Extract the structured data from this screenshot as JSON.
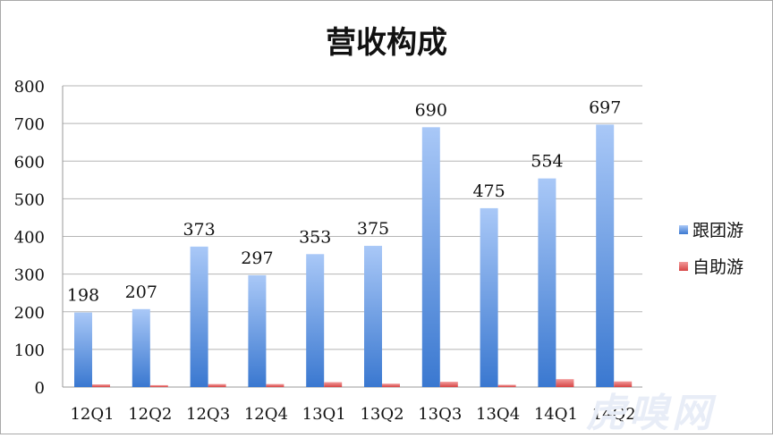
{
  "chart_data": {
    "type": "bar",
    "title": "营收构成",
    "categories": [
      "12Q1",
      "12Q2",
      "12Q3",
      "12Q4",
      "13Q1",
      "13Q2",
      "13Q3",
      "13Q4",
      "14Q1",
      "14Q2"
    ],
    "series": [
      {
        "name": "跟团游",
        "values": [
          198,
          207,
          373,
          297,
          353,
          375,
          690,
          475,
          554,
          697
        ],
        "color": "#4f8bd8",
        "data_labels": true
      },
      {
        "name": "自助游",
        "values": [
          7,
          5,
          8,
          8,
          13,
          9,
          14,
          6,
          21,
          15
        ],
        "color": "#e05c5c",
        "data_labels": false
      }
    ],
    "ylim": [
      0,
      800
    ],
    "yticks": [
      0,
      100,
      200,
      300,
      400,
      500,
      600,
      700,
      800
    ],
    "grid": true,
    "legend": "right"
  },
  "watermark": "虎嗅网"
}
